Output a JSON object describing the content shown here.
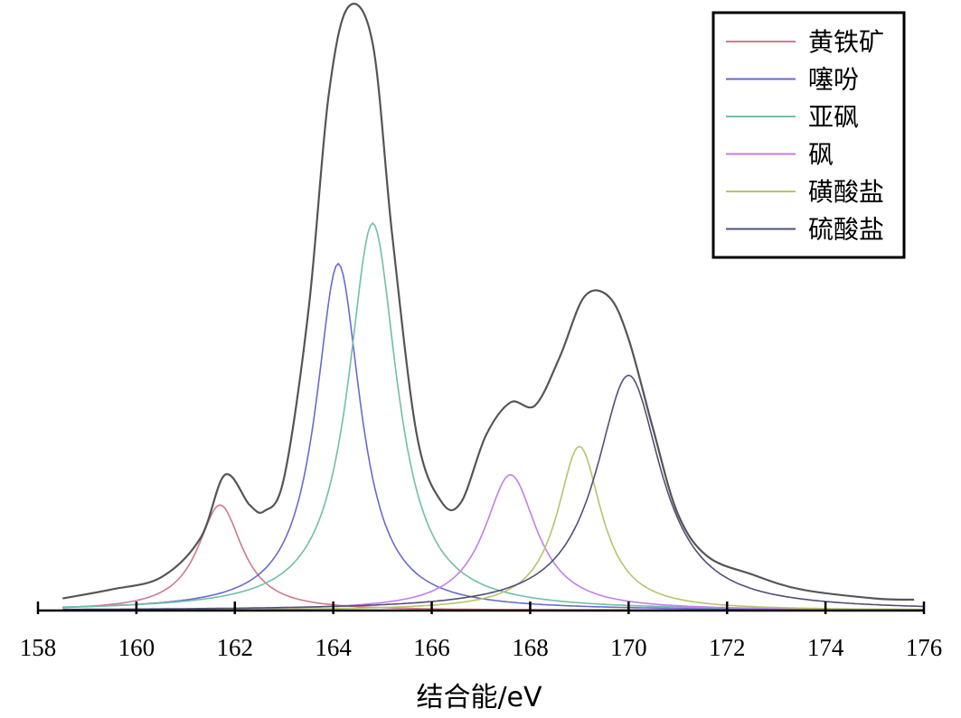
{
  "chart_data": {
    "type": "line",
    "xlabel": "结合能/eV",
    "ylabel": "",
    "xlim": [
      158,
      176
    ],
    "ylim": [
      0,
      1
    ],
    "x_ticks": [
      158,
      160,
      162,
      164,
      166,
      168,
      170,
      172,
      174,
      176
    ],
    "grid": false,
    "legend_position": "top-right",
    "series": [
      {
        "name": "黄铁矿",
        "color": "#d07a8a",
        "peak_center": 161.7,
        "peak_height": 0.175,
        "width": 0.55
      },
      {
        "name": "噻吩",
        "color": "#6a6ad0",
        "peak_center": 164.1,
        "peak_height": 0.575,
        "width": 0.55
      },
      {
        "name": "亚砜",
        "color": "#6fbfa6",
        "peak_center": 164.8,
        "peak_height": 0.642,
        "width": 0.6
      },
      {
        "name": "砜",
        "color": "#c47ee8",
        "peak_center": 167.6,
        "peak_height": 0.225,
        "width": 0.65
      },
      {
        "name": "磺酸盐",
        "color": "#b8c46a",
        "peak_center": 169.0,
        "peak_height": 0.272,
        "width": 0.55
      },
      {
        "name": "硫酸盐",
        "color": "#505078",
        "peak_center": 170.0,
        "peak_height": 0.39,
        "width": 0.8
      }
    ],
    "envelope": {
      "color": "#555555",
      "points": [
        [
          158.5,
          0.02
        ],
        [
          159.5,
          0.035
        ],
        [
          160.5,
          0.055
        ],
        [
          161.3,
          0.12
        ],
        [
          161.8,
          0.225
        ],
        [
          162.3,
          0.175
        ],
        [
          162.6,
          0.165
        ],
        [
          163.0,
          0.22
        ],
        [
          163.5,
          0.5
        ],
        [
          163.9,
          0.85
        ],
        [
          164.3,
          1.0
        ],
        [
          164.8,
          0.94
        ],
        [
          165.2,
          0.62
        ],
        [
          165.7,
          0.29
        ],
        [
          166.2,
          0.18
        ],
        [
          166.6,
          0.18
        ],
        [
          167.1,
          0.29
        ],
        [
          167.6,
          0.345
        ],
        [
          168.1,
          0.34
        ],
        [
          168.6,
          0.42
        ],
        [
          169.1,
          0.52
        ],
        [
          169.6,
          0.52
        ],
        [
          170.0,
          0.45
        ],
        [
          170.5,
          0.3
        ],
        [
          171.0,
          0.16
        ],
        [
          171.6,
          0.09
        ],
        [
          172.5,
          0.06
        ],
        [
          173.5,
          0.035
        ],
        [
          175.0,
          0.02
        ],
        [
          175.8,
          0.018
        ]
      ]
    }
  }
}
